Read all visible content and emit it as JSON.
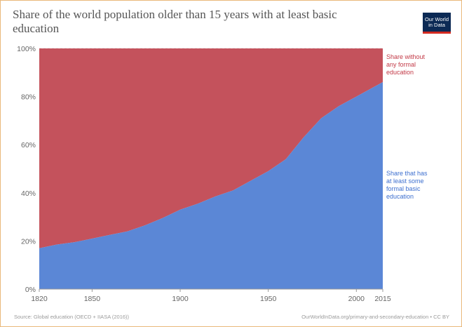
{
  "header": {
    "title": "Share of the world population older than 15 years with at least basic education",
    "logo": {
      "line1": "Our World",
      "line2": "in Data"
    }
  },
  "footer": {
    "source": "Source: Global education (OECD + IIASA (2016))",
    "license": "OurWorldInData.org/primary-and-secondary-education • CC BY"
  },
  "colors": {
    "basic": "#5b87d6",
    "none": "#c4525c",
    "basic_label": "#3d6fcf",
    "none_label": "#c33a47"
  },
  "chart_data": {
    "type": "area",
    "stacked": true,
    "xlim": [
      1820,
      2015
    ],
    "ylim": [
      0,
      100
    ],
    "x_ticks": [
      "1820",
      "1850",
      "1900",
      "1950",
      "2000",
      "2015"
    ],
    "y_ticks": [
      "0%",
      "20%",
      "40%",
      "60%",
      "80%",
      "100%"
    ],
    "x": [
      1820,
      1830,
      1840,
      1850,
      1860,
      1870,
      1880,
      1890,
      1900,
      1910,
      1920,
      1930,
      1940,
      1950,
      1960,
      1970,
      1980,
      1990,
      2000,
      2010,
      2015
    ],
    "series": [
      {
        "name": "Share that has at least some formal basic education",
        "values": [
          17,
          18.5,
          19.5,
          21,
          22.5,
          24,
          26.5,
          29.5,
          33,
          35.5,
          38.5,
          41,
          45,
          49,
          54,
          63,
          71,
          76,
          80,
          84,
          86
        ]
      },
      {
        "name": "Share without any formal education",
        "values": [
          83,
          81.5,
          80.5,
          79,
          77.5,
          76,
          73.5,
          70.5,
          67,
          64.5,
          61.5,
          59,
          55,
          51,
          46,
          37,
          29,
          24,
          20,
          16,
          14
        ]
      }
    ],
    "legend_position": "right-inline"
  }
}
